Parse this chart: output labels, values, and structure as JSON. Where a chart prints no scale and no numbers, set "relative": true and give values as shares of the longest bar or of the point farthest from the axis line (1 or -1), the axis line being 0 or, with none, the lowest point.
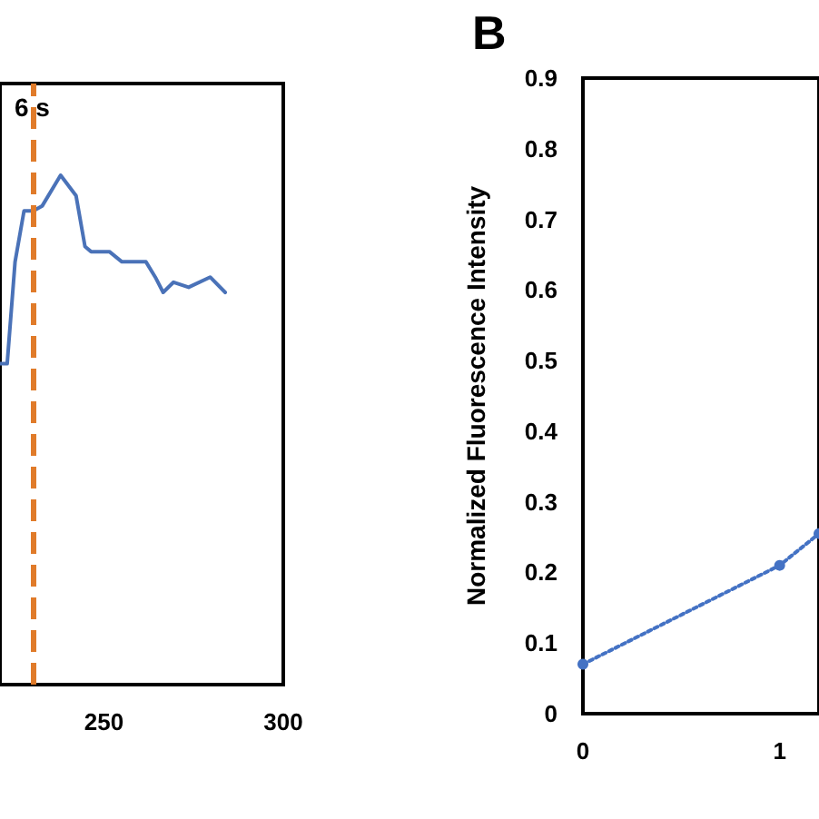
{
  "chart_data": [
    {
      "type": "line",
      "relative": true,
      "x": [
        221,
        223,
        225.2,
        227.7,
        230.3,
        232.8,
        237.9,
        242.2,
        244.7,
        246.4,
        251.5,
        255,
        261.7,
        264.3,
        266.5,
        269.4,
        273.6,
        279.6,
        283.8
      ],
      "series": [
        {
          "color": "#4a72b8",
          "values": [
            0.63,
            0.63,
            0.83,
            0.93,
            0.93,
            0.94,
            1.0,
            0.96,
            0.86,
            0.85,
            0.85,
            0.83,
            0.83,
            0.8,
            0.77,
            0.79,
            0.78,
            0.8,
            0.77
          ]
        }
      ],
      "xlim": [
        221,
        300
      ],
      "xticks": [
        250,
        300
      ],
      "tick_labels": "x",
      "marker": "none",
      "ref_lines": [
        {
          "axis": "x",
          "value": 230,
          "color": "#e07b2a",
          "line_style": "dashed"
        }
      ],
      "annotations": [
        "6 s"
      ]
    },
    {
      "type": "line",
      "title": "B",
      "ylabel": "Normalized Fluorescence Intensity",
      "x": [
        0,
        1,
        1.2
      ],
      "series": [
        {
          "color": "#4472c4",
          "values": [
            0.07,
            0.21,
            0.255
          ]
        }
      ],
      "xlim": [
        0,
        1.2
      ],
      "xticks": [
        0,
        1
      ],
      "ylim": [
        0,
        0.9
      ],
      "yticks": [
        0,
        0.1,
        0.2,
        0.3,
        0.4,
        0.5,
        0.6,
        0.7,
        0.8,
        0.9
      ],
      "marker": "circle",
      "line_style": "dotted"
    }
  ]
}
